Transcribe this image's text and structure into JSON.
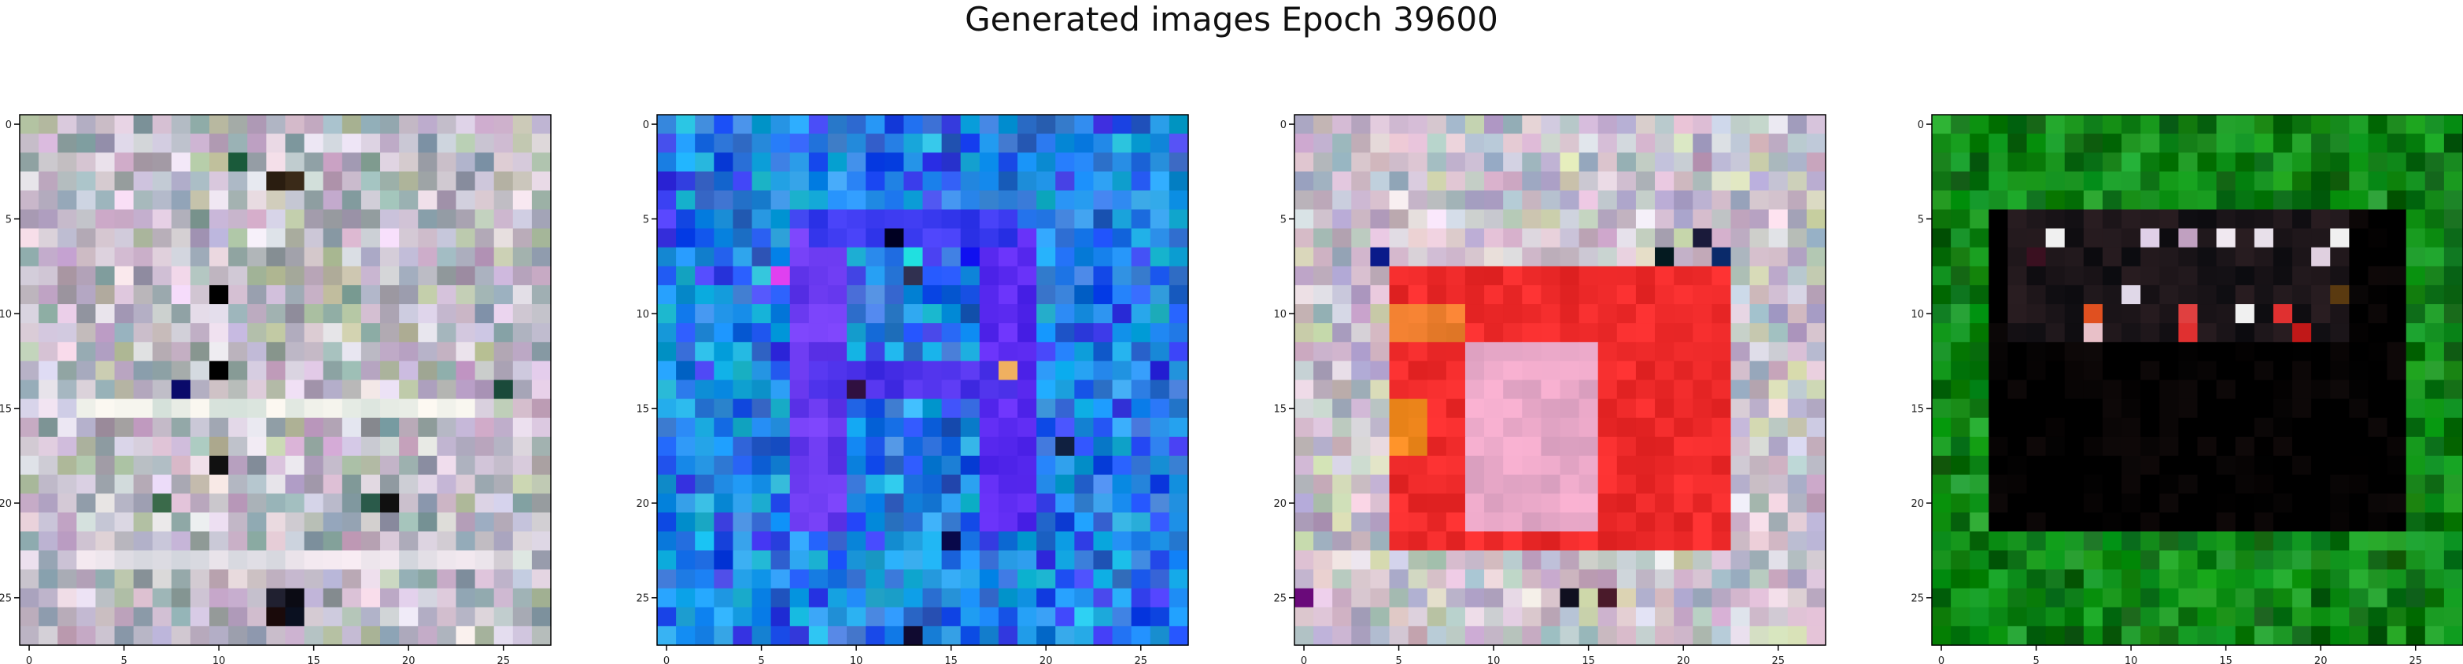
{
  "title": "Generated images Epoch 39600",
  "chart_data": {
    "type": "heatmap",
    "title": "Generated images Epoch 39600",
    "grid_size": [
      28,
      28
    ],
    "xlim": [
      -0.5,
      27.5
    ],
    "ylim": [
      27.5,
      -0.5
    ],
    "x_ticks": [
      0,
      5,
      10,
      15,
      20,
      25
    ],
    "y_ticks": [
      0,
      5,
      10,
      15,
      20,
      25
    ],
    "grid": false,
    "panels": [
      {
        "palette": [
          "#a9a4b3",
          "#c7c0cc",
          "#b9b2c8",
          "#d0c5d6",
          "#9eb0b4",
          "#c4a8c6",
          "#b8c1a6",
          "#dbd7e2",
          "#8fa2a8",
          "#e3d6e3"
        ],
        "accents": [
          {
            "x": 13,
            "y": 3,
            "color": "#2a1d10"
          },
          {
            "x": 14,
            "y": 3,
            "color": "#3a2a18"
          },
          {
            "x": 10,
            "y": 9,
            "color": "#000000"
          },
          {
            "x": 10,
            "y": 13,
            "color": "#000000"
          },
          {
            "x": 8,
            "y": 14,
            "color": "#0a0a6a"
          },
          {
            "x": 10,
            "y": 18,
            "color": "#111111"
          },
          {
            "x": 13,
            "y": 25,
            "color": "#202030"
          },
          {
            "x": 14,
            "y": 25,
            "color": "#0b0b14"
          },
          {
            "x": 13,
            "y": 26,
            "color": "#1a0a0a"
          },
          {
            "x": 14,
            "y": 26,
            "color": "#0a1020"
          },
          {
            "x": 11,
            "y": 2,
            "color": "#1a5a3a"
          },
          {
            "x": 7,
            "y": 20,
            "color": "#3a6a4a"
          },
          {
            "x": 18,
            "y": 20,
            "color": "#2a5a4a"
          },
          {
            "x": 25,
            "y": 14,
            "color": "#1a4a3a"
          },
          {
            "x": 19,
            "y": 20,
            "color": "#101010"
          }
        ],
        "bands": [
          {
            "y_from": 15,
            "y_to": 15,
            "x_from": 3,
            "x_to": 23,
            "color": "#e9ede6"
          },
          {
            "y_from": 23,
            "y_to": 23,
            "x_from": 3,
            "x_to": 24,
            "color": "#e6e1e8"
          }
        ],
        "noise": 40
      },
      {
        "palette": [
          "#1e8ee0",
          "#1a6fe0",
          "#2aa0e8",
          "#1d4ff0",
          "#3c3de8",
          "#25b5d8",
          "#3b7fd8",
          "#1890f5",
          "#2d63c8",
          "#10a4e0"
        ],
        "accents": [
          {
            "x": 12,
            "y": 6,
            "color": "#000022"
          },
          {
            "x": 13,
            "y": 7,
            "color": "#20e0e0"
          },
          {
            "x": 16,
            "y": 7,
            "color": "#1010f0"
          },
          {
            "x": 6,
            "y": 8,
            "color": "#e040f0"
          },
          {
            "x": 13,
            "y": 8,
            "color": "#303050"
          },
          {
            "x": 18,
            "y": 13,
            "color": "#f0b060"
          },
          {
            "x": 10,
            "y": 14,
            "color": "#301040"
          },
          {
            "x": 21,
            "y": 17,
            "color": "#102040"
          },
          {
            "x": 15,
            "y": 22,
            "color": "#08084a"
          },
          {
            "x": 13,
            "y": 27,
            "color": "#100a30"
          }
        ],
        "bands": [
          {
            "y_from": 6,
            "y_to": 21,
            "x_from": 7,
            "x_to": 9,
            "color": "#6a3af0"
          },
          {
            "y_from": 6,
            "y_to": 21,
            "x_from": 17,
            "x_to": 19,
            "color": "#5a2af0"
          },
          {
            "y_from": 13,
            "y_to": 14,
            "x_from": 8,
            "x_to": 18,
            "color": "#4a30e8"
          },
          {
            "y_from": 5,
            "y_to": 6,
            "x_from": 8,
            "x_to": 18,
            "color": "#3a3aef"
          }
        ],
        "noise": 45
      },
      {
        "palette": [
          "#c9b2bf",
          "#d7c0d0",
          "#b7c7c0",
          "#e3cad8",
          "#a7b9c6",
          "#c3a8c2",
          "#d1d7b6",
          "#e8dbe4",
          "#b3a8c8",
          "#cfd1e0"
        ],
        "accents": [
          {
            "x": 4,
            "y": 7,
            "color": "#0a1a8a"
          },
          {
            "x": 19,
            "y": 7,
            "color": "#041a20"
          },
          {
            "x": 22,
            "y": 7,
            "color": "#0a2a6a"
          },
          {
            "x": 21,
            "y": 6,
            "color": "#1a1a3a"
          },
          {
            "x": 14,
            "y": 25,
            "color": "#101020"
          },
          {
            "x": 0,
            "y": 25,
            "color": "#6a0a7a"
          },
          {
            "x": 16,
            "y": 25,
            "color": "#4a1a2a"
          }
        ],
        "bands": [
          {
            "y_from": 8,
            "y_to": 22,
            "x_from": 5,
            "x_to": 22,
            "color": "#ee2a2a"
          },
          {
            "y_from": 12,
            "y_to": 21,
            "x_from": 9,
            "x_to": 15,
            "color": "#e9a8c8"
          },
          {
            "y_from": 10,
            "y_to": 11,
            "x_from": 5,
            "x_to": 8,
            "color": "#f08030"
          },
          {
            "y_from": 15,
            "y_to": 17,
            "x_from": 5,
            "x_to": 6,
            "color": "#f58a20"
          }
        ],
        "noise": 35
      },
      {
        "palette": [
          "#0a7a0a",
          "#0a8c14",
          "#15961e",
          "#086a10",
          "#1fa028",
          "#0b5e0e",
          "#129a18",
          "#0e8010",
          "#20a02a",
          "#097012"
        ],
        "accents": [
          {
            "x": 6,
            "y": 6,
            "color": "#f0f0f0"
          },
          {
            "x": 11,
            "y": 6,
            "color": "#e0d0e8"
          },
          {
            "x": 15,
            "y": 6,
            "color": "#f0e8f0"
          },
          {
            "x": 17,
            "y": 6,
            "color": "#e8e0ea"
          },
          {
            "x": 21,
            "y": 6,
            "color": "#f0f0f0"
          },
          {
            "x": 5,
            "y": 7,
            "color": "#3a1020"
          },
          {
            "x": 13,
            "y": 6,
            "color": "#c0a0c0"
          },
          {
            "x": 8,
            "y": 10,
            "color": "#e05020"
          },
          {
            "x": 8,
            "y": 11,
            "color": "#e8c0c8"
          },
          {
            "x": 13,
            "y": 10,
            "color": "#e04040"
          },
          {
            "x": 13,
            "y": 11,
            "color": "#e03030"
          },
          {
            "x": 18,
            "y": 10,
            "color": "#e03030"
          },
          {
            "x": 19,
            "y": 11,
            "color": "#c01818"
          },
          {
            "x": 20,
            "y": 7,
            "color": "#e0d0e0"
          },
          {
            "x": 16,
            "y": 10,
            "color": "#f0f0f0"
          },
          {
            "x": 10,
            "y": 9,
            "color": "#e0d8e8"
          },
          {
            "x": 21,
            "y": 9,
            "color": "#5a3a10"
          }
        ],
        "bands": [
          {
            "y_from": 5,
            "y_to": 21,
            "x_from": 3,
            "x_to": 24,
            "color": "#000000"
          },
          {
            "y_from": 5,
            "y_to": 11,
            "x_from": 4,
            "x_to": 21,
            "color": "#1a1418"
          }
        ],
        "noise": 30
      }
    ]
  }
}
